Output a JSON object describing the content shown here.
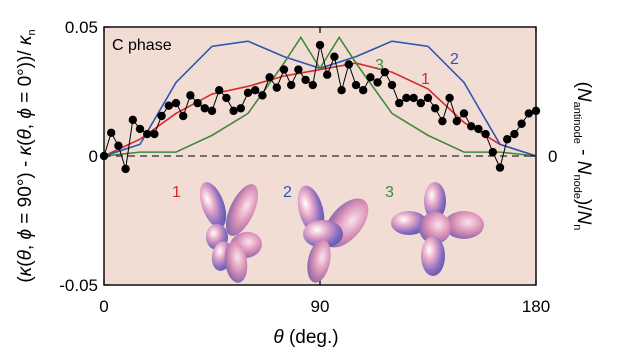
{
  "chart_data": {
    "type": "line",
    "annotation": "C phase",
    "xlabel": "θ (deg.)",
    "ylabel_left": "(κ(θ, ϕ = 90°) - κ(θ, ϕ = 0°))/ κ_n",
    "ylabel_right": "(N_antinode - N_node)/N_n",
    "xlim": [
      0,
      180
    ],
    "ylim": [
      -0.05,
      0.05
    ],
    "x_ticks": [
      0,
      90,
      180
    ],
    "y_ticks_left": [
      "-0.05",
      "0",
      "0.05"
    ],
    "y_ticks_right": [
      "0"
    ],
    "background_color": "#f2ddd5",
    "series": [
      {
        "name": "1",
        "color": "#d42a2a",
        "style": "line",
        "x": [
          0,
          15,
          30,
          45,
          60,
          75,
          90,
          105,
          120,
          135,
          150,
          165,
          180
        ],
        "y": [
          0,
          0.0065,
          0.0165,
          0.024,
          0.027,
          0.031,
          0.0335,
          0.036,
          0.0325,
          0.026,
          0.013,
          0.0045,
          0
        ]
      },
      {
        "name": "2",
        "color": "#2e55b0",
        "style": "line",
        "x": [
          0,
          15,
          30,
          45,
          60,
          75,
          90,
          105,
          120,
          135,
          150,
          165,
          180
        ],
        "y": [
          0,
          0.0045,
          0.0285,
          0.0425,
          0.0445,
          0.0385,
          0.034,
          0.0385,
          0.0445,
          0.0425,
          0.0285,
          0.0045,
          0
        ]
      },
      {
        "name": "3",
        "color": "#3f8a3f",
        "style": "line",
        "x": [
          0,
          15,
          30,
          45,
          60,
          75,
          82,
          90,
          98,
          105,
          120,
          135,
          150,
          165,
          180
        ],
        "y": [
          0,
          0.0015,
          0.0015,
          0.008,
          0.0165,
          0.036,
          0.046,
          0.034,
          0.046,
          0.036,
          0.0165,
          0.008,
          0.0015,
          0.0015,
          0
        ]
      },
      {
        "name": "data",
        "color": "#000000",
        "style": "line-markers",
        "x": [
          0,
          3,
          6,
          9,
          12,
          15,
          18,
          21,
          24,
          27,
          30,
          33,
          36,
          39,
          42,
          45,
          48,
          51,
          54,
          57,
          60,
          63,
          66,
          69,
          72,
          75,
          78,
          81,
          84,
          87,
          90,
          93,
          96,
          99,
          102,
          105,
          108,
          111,
          114,
          117,
          120,
          123,
          126,
          129,
          132,
          135,
          138,
          141,
          144,
          147,
          150,
          153,
          156,
          159,
          162,
          165,
          168,
          171,
          174,
          177,
          180
        ],
        "y": [
          0,
          0.009,
          0.004,
          -0.005,
          0.014,
          0.0105,
          0.0085,
          0.0085,
          0.0155,
          0.0195,
          0.0205,
          0.0155,
          0.0235,
          0.0205,
          0.0185,
          0.0175,
          0.0255,
          0.0225,
          0.0175,
          0.0185,
          0.0245,
          0.0255,
          0.0235,
          0.0305,
          0.0265,
          0.0335,
          0.0275,
          0.0335,
          0.0295,
          0.0275,
          0.043,
          0.0315,
          0.0385,
          0.0255,
          0.0355,
          0.0275,
          0.0255,
          0.0305,
          0.0285,
          0.0325,
          0.0275,
          0.0205,
          0.0225,
          0.0225,
          0.0205,
          0.0225,
          0.0185,
          0.0135,
          0.0225,
          0.0135,
          0.0165,
          0.0115,
          0.0105,
          0.0085,
          0.0015,
          -0.0045,
          0.0065,
          0.0085,
          0.0125,
          0.0165,
          0.0175
        ]
      }
    ],
    "inset_labels": [
      {
        "text": "1",
        "color": "#d42a2a"
      },
      {
        "text": "2",
        "color": "#2e55b0"
      },
      {
        "text": "3",
        "color": "#3f8a3f"
      }
    ]
  }
}
